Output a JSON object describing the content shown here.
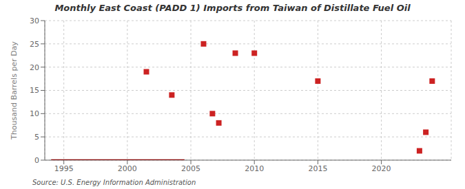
{
  "chart_data": {
    "type": "scatter",
    "title": "Monthly East Coast (PADD 1) Imports from Taiwan of Distillate Fuel Oil",
    "ylabel": "Thousand Barrels per Day",
    "source": "Source: U.S. Energy Information Administration",
    "xlim": [
      1993.5,
      2025.5
    ],
    "ylim": [
      0,
      30
    ],
    "xticks": [
      1995,
      2000,
      2005,
      2010,
      2015,
      2020
    ],
    "yticks": [
      0,
      5,
      10,
      15,
      20,
      25,
      30
    ],
    "grid": true,
    "series": [
      {
        "type": "line",
        "color": "#8b1010",
        "x": [
          1994.0,
          2004.5
        ],
        "values": [
          0,
          0
        ]
      },
      {
        "type": "scatter",
        "color": "#cc2222",
        "marker": "square",
        "x": [
          2001.5,
          2003.5,
          2006.0,
          2006.7,
          2007.2,
          2008.5,
          2010.0,
          2015.0,
          2023.0,
          2023.5,
          2024.0
        ],
        "values": [
          19,
          14,
          25,
          10,
          8,
          23,
          23,
          17,
          2,
          6,
          17
        ]
      }
    ]
  }
}
